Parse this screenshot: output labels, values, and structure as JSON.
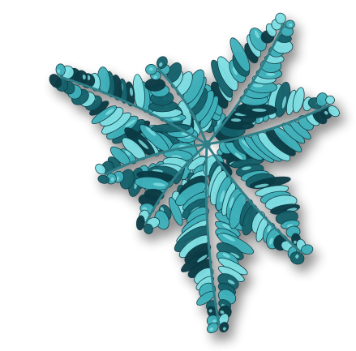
{
  "scene": {
    "background_color": "#ffffff",
    "subject": "fractal-fern-flake",
    "palette": {
      "leaf_light": "#7fe0e4",
      "leaf_mid": "#3fb1bb",
      "leaf_dark": "#14616b",
      "leaf_deep": "#0a3a44",
      "stem": "#2f7f88",
      "shadow": "#000000"
    }
  }
}
